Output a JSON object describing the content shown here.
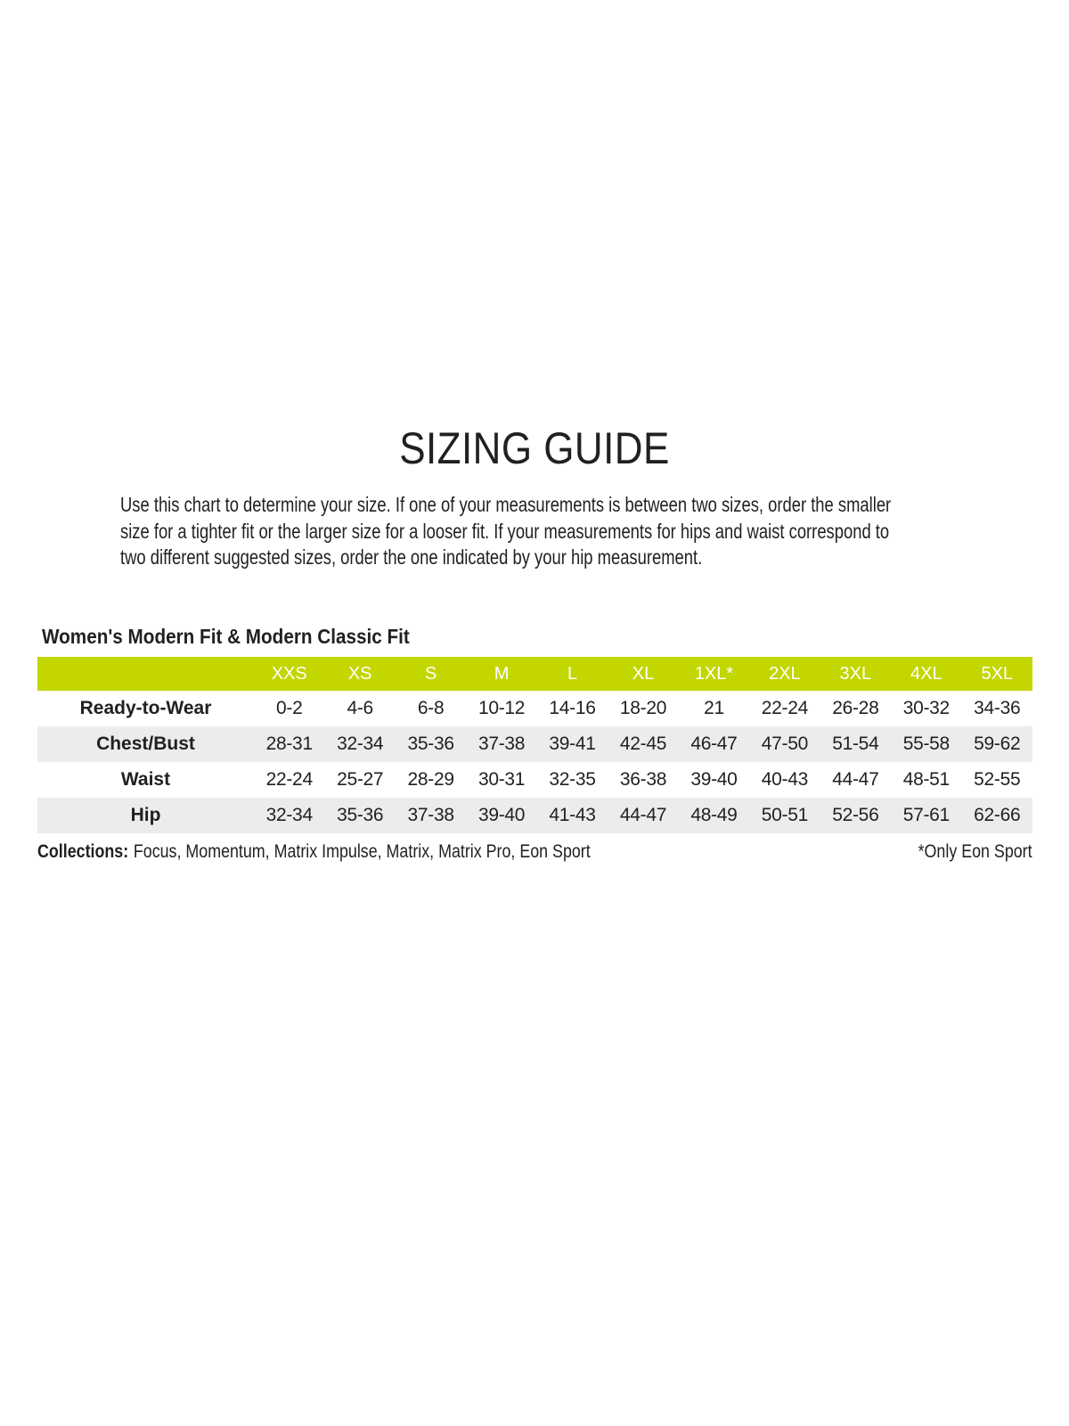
{
  "page": {
    "title": "SIZING GUIDE"
  },
  "intro": {
    "lines": [
      "Use this chart to determine your size. If one of your measurements is between two sizes, order the smaller",
      "size for a tighter fit or the larger size for a looser fit. If your measurements for hips and waist correspond to",
      "two different suggested sizes, order the one indicated by your hip measurement."
    ]
  },
  "size_table": {
    "title": "Women's Modern Fit & Modern Classic Fit",
    "columns": [
      "XXS",
      "XS",
      "S",
      "M",
      "L",
      "XL",
      "1XL*",
      "2XL",
      "3XL",
      "4XL",
      "5XL"
    ],
    "rows": [
      {
        "label": "Ready-to-Wear",
        "values": [
          "0-2",
          "4-6",
          "6-8",
          "10-12",
          "14-16",
          "18-20",
          "21",
          "22-24",
          "26-28",
          "30-32",
          "34-36"
        ]
      },
      {
        "label": "Chest/Bust",
        "values": [
          "28-31",
          "32-34",
          "35-36",
          "37-38",
          "39-41",
          "42-45",
          "46-47",
          "47-50",
          "51-54",
          "55-58",
          "59-62"
        ]
      },
      {
        "label": "Waist",
        "values": [
          "22-24",
          "25-27",
          "28-29",
          "30-31",
          "32-35",
          "36-38",
          "39-40",
          "40-43",
          "44-47",
          "48-51",
          "52-55"
        ]
      },
      {
        "label": "Hip",
        "values": [
          "32-34",
          "35-36",
          "37-38",
          "39-40",
          "41-43",
          "44-47",
          "48-49",
          "50-51",
          "52-56",
          "57-61",
          "62-66"
        ]
      }
    ]
  },
  "footer": {
    "collections_label": "Collections:",
    "collections_list": "Focus, Momentum, Matrix Impulse, Matrix, Matrix Pro, Eon Sport",
    "note": "*Only Eon Sport"
  },
  "colors": {
    "accent": "#c3d600",
    "row_alt": "#ececed",
    "text": "#231f20",
    "header_text": "#ffffff"
  }
}
